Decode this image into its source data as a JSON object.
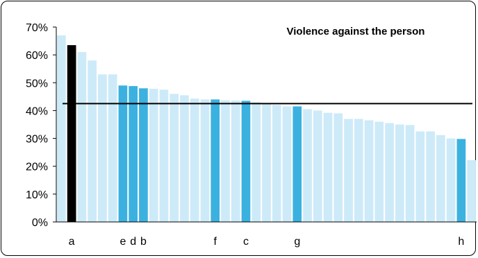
{
  "chart_data": {
    "type": "bar",
    "title": "Violence against the person",
    "xlabel": "",
    "ylabel": "",
    "ylim": [
      0,
      0.7
    ],
    "yticks": [
      "0%",
      "10%",
      "20%",
      "30%",
      "40%",
      "50%",
      "60%",
      "70%"
    ],
    "average_line": 0.425,
    "grid": false,
    "legend": "none",
    "colors": {
      "default": "#cdeaf8",
      "highlight": "#3bb1e0",
      "focus": "#000000",
      "average": "#000000"
    },
    "bars": [
      {
        "value": 0.67,
        "label": "",
        "style": "default"
      },
      {
        "value": 0.635,
        "label": "a",
        "style": "focus"
      },
      {
        "value": 0.61,
        "label": "",
        "style": "default"
      },
      {
        "value": 0.58,
        "label": "",
        "style": "default"
      },
      {
        "value": 0.53,
        "label": "",
        "style": "default"
      },
      {
        "value": 0.53,
        "label": "",
        "style": "default"
      },
      {
        "value": 0.49,
        "label": "e",
        "style": "highlight"
      },
      {
        "value": 0.488,
        "label": "d",
        "style": "highlight"
      },
      {
        "value": 0.48,
        "label": "b",
        "style": "highlight"
      },
      {
        "value": 0.478,
        "label": "",
        "style": "default"
      },
      {
        "value": 0.475,
        "label": "",
        "style": "default"
      },
      {
        "value": 0.46,
        "label": "",
        "style": "default"
      },
      {
        "value": 0.455,
        "label": "",
        "style": "default"
      },
      {
        "value": 0.443,
        "label": "",
        "style": "default"
      },
      {
        "value": 0.44,
        "label": "",
        "style": "default"
      },
      {
        "value": 0.44,
        "label": "f",
        "style": "highlight"
      },
      {
        "value": 0.437,
        "label": "",
        "style": "default"
      },
      {
        "value": 0.436,
        "label": "",
        "style": "default"
      },
      {
        "value": 0.435,
        "label": "c",
        "style": "highlight"
      },
      {
        "value": 0.43,
        "label": "",
        "style": "default"
      },
      {
        "value": 0.425,
        "label": "",
        "style": "default"
      },
      {
        "value": 0.42,
        "label": "",
        "style": "default"
      },
      {
        "value": 0.415,
        "label": "",
        "style": "default"
      },
      {
        "value": 0.415,
        "label": "g",
        "style": "highlight"
      },
      {
        "value": 0.405,
        "label": "",
        "style": "default"
      },
      {
        "value": 0.4,
        "label": "",
        "style": "default"
      },
      {
        "value": 0.392,
        "label": "",
        "style": "default"
      },
      {
        "value": 0.39,
        "label": "",
        "style": "default"
      },
      {
        "value": 0.37,
        "label": "",
        "style": "default"
      },
      {
        "value": 0.37,
        "label": "",
        "style": "default"
      },
      {
        "value": 0.365,
        "label": "",
        "style": "default"
      },
      {
        "value": 0.36,
        "label": "",
        "style": "default"
      },
      {
        "value": 0.355,
        "label": "",
        "style": "default"
      },
      {
        "value": 0.35,
        "label": "",
        "style": "default"
      },
      {
        "value": 0.348,
        "label": "",
        "style": "default"
      },
      {
        "value": 0.325,
        "label": "",
        "style": "default"
      },
      {
        "value": 0.325,
        "label": "",
        "style": "default"
      },
      {
        "value": 0.312,
        "label": "",
        "style": "default"
      },
      {
        "value": 0.3,
        "label": "",
        "style": "default"
      },
      {
        "value": 0.298,
        "label": "h",
        "style": "highlight"
      },
      {
        "value": 0.222,
        "label": "",
        "style": "default"
      }
    ]
  }
}
